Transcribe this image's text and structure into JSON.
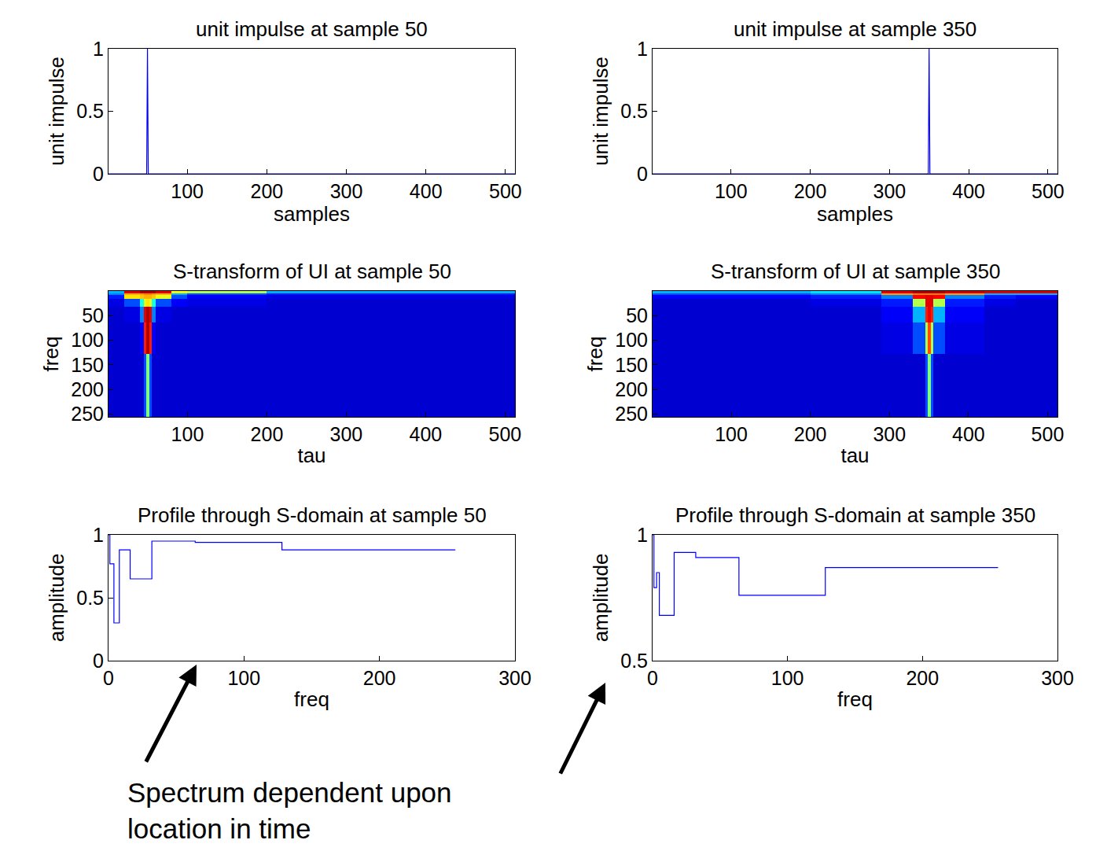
{
  "chart_data": [
    {
      "type": "line",
      "title": "unit impulse at sample 50",
      "x_label": "samples",
      "y_label": "unit impulse",
      "x": [
        1,
        49,
        50,
        51,
        512
      ],
      "values": [
        0,
        0,
        1,
        0,
        0
      ],
      "color": "#0000ff",
      "line_style": "solid",
      "xlim": [
        1,
        512
      ],
      "xticks": [
        100,
        200,
        300,
        400,
        500
      ],
      "ylim": [
        0,
        1
      ],
      "yticks": [
        0,
        0.5,
        1
      ]
    },
    {
      "type": "line",
      "title": "unit impulse at sample 350",
      "x_label": "samples",
      "y_label": "unit impulse",
      "x": [
        1,
        349,
        350,
        351,
        512
      ],
      "values": [
        0,
        0,
        1,
        0,
        0
      ],
      "color": "#0000ff",
      "line_style": "solid",
      "xlim": [
        1,
        512
      ],
      "xticks": [
        100,
        200,
        300,
        400,
        500
      ],
      "ylim": [
        0,
        1
      ],
      "yticks": [
        0,
        0.5,
        1
      ]
    },
    {
      "type": "heatmap",
      "title": "S-transform of UI at sample 50",
      "x_label": "tau",
      "y_label": "freq",
      "x_bins": [
        0.5,
        20,
        40,
        45,
        48,
        52,
        55,
        60,
        80,
        100,
        200,
        512.5
      ],
      "y_bins": [
        0,
        4,
        8,
        16,
        32,
        64,
        128,
        256
      ],
      "cells": [
        [
          0.3,
          0.9,
          0.95,
          0.95,
          0.95,
          0.95,
          0.95,
          0.9,
          0.62,
          0.55,
          0.3
        ],
        [
          0.25,
          0.7,
          0.72,
          0.75,
          0.75,
          0.75,
          0.72,
          0.7,
          0.3,
          0.2,
          0.15
        ],
        [
          0.15,
          0.65,
          0.68,
          0.7,
          0.7,
          0.7,
          0.68,
          0.6,
          0.2,
          0.12,
          0.1
        ],
        [
          0.1,
          0.2,
          0.4,
          0.6,
          0.65,
          0.6,
          0.4,
          0.2,
          0.12,
          0.1,
          0.08
        ],
        [
          0.08,
          0.1,
          0.25,
          0.9,
          0.95,
          0.9,
          0.25,
          0.1,
          0.08,
          0.08,
          0.08
        ],
        [
          0.08,
          0.08,
          0.12,
          0.85,
          0.95,
          0.85,
          0.12,
          0.08,
          0.08,
          0.08,
          0.08
        ],
        [
          0.08,
          0.08,
          0.08,
          0.2,
          0.5,
          0.2,
          0.08,
          0.08,
          0.08,
          0.08,
          0.08
        ]
      ],
      "zlim": [
        0,
        1
      ],
      "xlim": [
        0.5,
        512.5
      ],
      "xticks": [
        100,
        200,
        300,
        400,
        500
      ],
      "ylim": [
        256,
        0
      ],
      "yticks": [
        50,
        100,
        150,
        200,
        250
      ]
    },
    {
      "type": "heatmap",
      "title": "S-transform of UI at sample 350",
      "x_label": "tau",
      "y_label": "freq",
      "x_bins": [
        0.5,
        200,
        290,
        330,
        345,
        348,
        352,
        355,
        370,
        420,
        460,
        512.5
      ],
      "y_bins": [
        0,
        4,
        8,
        16,
        32,
        64,
        128,
        256
      ],
      "cells": [
        [
          0.3,
          0.35,
          0.9,
          0.95,
          0.95,
          0.95,
          0.95,
          0.95,
          0.92,
          0.9,
          0.9
        ],
        [
          0.2,
          0.25,
          0.72,
          0.75,
          0.75,
          0.75,
          0.75,
          0.75,
          0.72,
          0.3,
          0.3
        ],
        [
          0.12,
          0.15,
          0.25,
          0.88,
          0.9,
          0.9,
          0.9,
          0.88,
          0.25,
          0.15,
          0.12
        ],
        [
          0.08,
          0.1,
          0.15,
          0.55,
          0.9,
          0.9,
          0.9,
          0.55,
          0.15,
          0.1,
          0.08
        ],
        [
          0.08,
          0.08,
          0.12,
          0.3,
          0.85,
          0.9,
          0.85,
          0.3,
          0.12,
          0.08,
          0.08
        ],
        [
          0.08,
          0.08,
          0.1,
          0.2,
          0.55,
          0.8,
          0.55,
          0.2,
          0.1,
          0.08,
          0.08
        ],
        [
          0.08,
          0.08,
          0.08,
          0.08,
          0.2,
          0.5,
          0.2,
          0.08,
          0.08,
          0.08,
          0.08
        ]
      ],
      "zlim": [
        0,
        1
      ],
      "xlim": [
        0.5,
        512.5
      ],
      "xticks": [
        100,
        200,
        300,
        400,
        500
      ],
      "ylim": [
        256,
        0
      ],
      "yticks": [
        50,
        100,
        150,
        200,
        250
      ]
    },
    {
      "type": "line",
      "title": "Profile through S-domain at sample 50",
      "x_label": "freq",
      "y_label": "amplitude",
      "x": [
        0,
        1,
        4,
        8,
        16,
        32,
        64,
        128,
        256
      ],
      "values": [
        1,
        0.77,
        0.3,
        0.88,
        0.65,
        0.95,
        0.94,
        0.88,
        0.88
      ],
      "color": "#0000ff",
      "line_style": "steps",
      "xlim": [
        0,
        300
      ],
      "xticks": [
        0,
        100,
        200,
        300
      ],
      "ylim": [
        0,
        1
      ],
      "yticks": [
        0,
        0.5,
        1
      ]
    },
    {
      "type": "line",
      "title": "Profile through S-domain at sample 350",
      "x_label": "freq",
      "y_label": "amplitude",
      "x": [
        0,
        1,
        3,
        5,
        16,
        32,
        64,
        128,
        256
      ],
      "values": [
        1,
        0.79,
        0.85,
        0.68,
        0.93,
        0.91,
        0.76,
        0.87,
        0.87
      ],
      "color": "#0000ff",
      "line_style": "steps",
      "xlim": [
        0,
        300
      ],
      "xticks": [
        0,
        100,
        200,
        300
      ],
      "ylim": [
        0.5,
        1
      ],
      "yticks": [
        0.5,
        1
      ]
    }
  ],
  "annotation": {
    "text": [
      "Spectrum dependent upon",
      "location in time"
    ]
  }
}
